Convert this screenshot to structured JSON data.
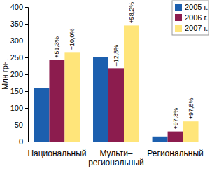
{
  "chart_data": {
    "type": "bar",
    "y_label": "Млн грн.",
    "categories": [
      "Национальный",
      "Мульти–\nрегиональный",
      "Региональный"
    ],
    "series": [
      {
        "name": "2005 г.",
        "color": "#1c5fae",
        "values": [
          160,
          250,
          15
        ]
      },
      {
        "name": "2006 г.",
        "color": "#8c1c4e",
        "values": [
          242,
          218,
          30
        ],
        "annotations": [
          "+51,3%",
          "–12,8%",
          "+97,3%"
        ]
      },
      {
        "name": "2007 г.",
        "color": "#ffe57a",
        "values": [
          266,
          345,
          60
        ],
        "annotations": [
          "+10,0%",
          "+58,2%",
          "+97,8%"
        ]
      }
    ],
    "ylim": [
      0,
      400
    ],
    "yticks": [
      0,
      50,
      100,
      150,
      200,
      250,
      300,
      350,
      400
    ],
    "grid": false,
    "legend": "top-right"
  }
}
